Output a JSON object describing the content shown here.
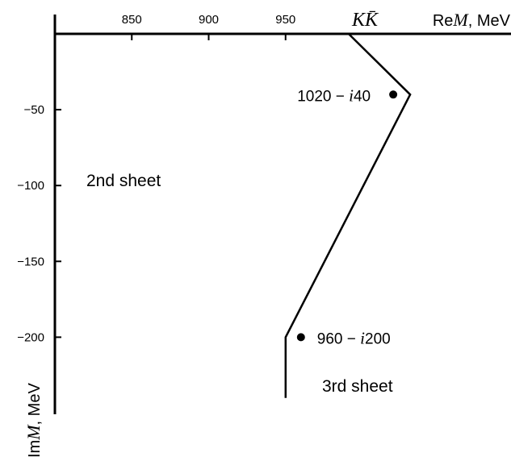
{
  "chart_data": {
    "type": "scatter",
    "xlabel": {
      "prefix": "Re",
      "var": "M",
      "suffix": ", MeV"
    },
    "ylabel": {
      "prefix": "Im",
      "var": "M",
      "suffix": ", MeV"
    },
    "xlim": [
      800,
      1090
    ],
    "ylim": [
      -250,
      0
    ],
    "x_ticks": [
      850,
      900,
      950
    ],
    "y_ticks": [
      -50,
      -100,
      -150,
      -200
    ],
    "x_tick_labels": [
      "850",
      "900",
      "950"
    ],
    "y_tick_labels": [
      "−50",
      "−100",
      "−150",
      "−200"
    ],
    "threshold_label": "KK̄",
    "threshold_x": 991,
    "region_labels": [
      "2nd sheet",
      "3rd sheet"
    ],
    "boundary": [
      {
        "x": 991,
        "y": 0
      },
      {
        "x": 1031,
        "y": -40
      },
      {
        "x": 950,
        "y": -200
      },
      {
        "x": 950,
        "y": -240
      }
    ],
    "points": [
      {
        "x": 1020,
        "y": -40,
        "label_main": "1020 −",
        "label_i": "i",
        "label_tail": "40"
      },
      {
        "x": 960,
        "y": -200,
        "label_main": "960 −",
        "label_i": "i",
        "label_tail": "200"
      }
    ],
    "grid": false
  }
}
